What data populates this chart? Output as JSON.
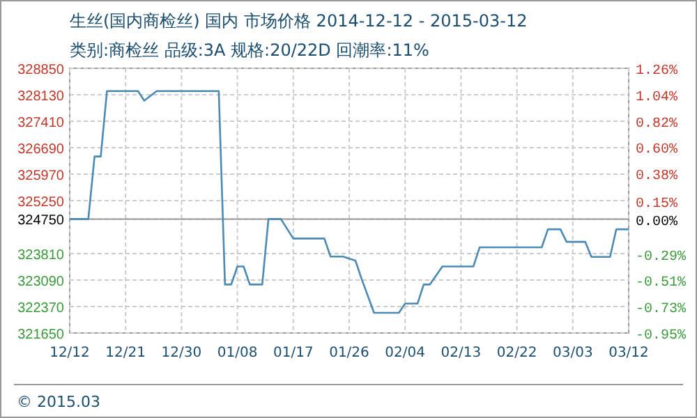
{
  "chart_data": {
    "type": "line",
    "title": "生丝(国内商检丝) 国内 市场价格 2014-12-12 - 2015-03-12",
    "subtitle": "类别:商检丝 品级:3A 规格:20/22D 回潮率:11%",
    "annotations": [
      "© 2015.03"
    ],
    "x": [
      "2014-12-12",
      "2014-12-15",
      "2014-12-16",
      "2014-12-17",
      "2014-12-18",
      "2014-12-23",
      "2014-12-24",
      "2014-12-26",
      "2015-01-05",
      "2015-01-06",
      "2015-01-07",
      "2015-01-08",
      "2015-01-09",
      "2015-01-10",
      "2015-01-12",
      "2015-01-13",
      "2015-01-15",
      "2015-01-17",
      "2015-01-22",
      "2015-01-23",
      "2015-01-25",
      "2015-01-27",
      "2015-01-28",
      "2015-01-30",
      "2015-02-03",
      "2015-02-04",
      "2015-02-06",
      "2015-02-07",
      "2015-02-08",
      "2015-02-10",
      "2015-02-15",
      "2015-02-16",
      "2015-02-26",
      "2015-02-27",
      "2015-03-01",
      "2015-03-02",
      "2015-03-05",
      "2015-03-06",
      "2015-03-09",
      "2015-03-10",
      "2015-03-12"
    ],
    "series": [
      {
        "color": "#4a8ab4",
        "values": [
          324750,
          324750,
          326450,
          326450,
          328230,
          328230,
          327970,
          328230,
          328230,
          322970,
          322970,
          323460,
          323460,
          322970,
          322970,
          324750,
          324750,
          324220,
          324220,
          323730,
          323730,
          323620,
          323120,
          322200,
          322200,
          322450,
          322450,
          322970,
          322970,
          323460,
          323460,
          323980,
          323980,
          324470,
          324470,
          324130,
          324130,
          323720,
          323720,
          324470,
          324470
        ]
      }
    ],
    "xlim": [
      "2014-12-12",
      "2015-03-12"
    ],
    "xticks": [
      {
        "value": "2014-12-12",
        "label": "12/12"
      },
      {
        "value": "2014-12-21",
        "label": "12/21"
      },
      {
        "value": "2014-12-30",
        "label": "12/30"
      },
      {
        "value": "2015-01-08",
        "label": "01/08"
      },
      {
        "value": "2015-01-17",
        "label": "01/17"
      },
      {
        "value": "2015-01-26",
        "label": "01/26"
      },
      {
        "value": "2015-02-04",
        "label": "02/04"
      },
      {
        "value": "2015-02-13",
        "label": "02/13"
      },
      {
        "value": "2015-02-22",
        "label": "02/22"
      },
      {
        "value": "2015-03-03",
        "label": "03/03"
      },
      {
        "value": "2015-03-12",
        "label": "03/12"
      }
    ],
    "ylim": [
      321650,
      328850
    ],
    "yticks": [
      321650,
      322370,
      323090,
      323810,
      324750,
      325250,
      325970,
      326690,
      327410,
      328130,
      328850
    ],
    "y2lim": [
      -0.95,
      1.26
    ],
    "y2ticks": [
      {
        "value": -0.95,
        "label": "-0.95%"
      },
      {
        "value": -0.73,
        "label": "-0.73%"
      },
      {
        "value": -0.51,
        "label": "-0.51%"
      },
      {
        "value": -0.29,
        "label": "-0.29%"
      },
      {
        "value": 0,
        "label": "0.00%"
      },
      {
        "value": 0.15,
        "label": "0.15%"
      },
      {
        "value": 0.38,
        "label": "0.38%"
      },
      {
        "value": 0.6,
        "label": "0.60%"
      },
      {
        "value": 0.82,
        "label": "0.82%"
      },
      {
        "value": 1.04,
        "label": "1.04%"
      },
      {
        "value": 1.26,
        "label": "1.26%"
      }
    ],
    "ref_lines": [
      {
        "axis": "y",
        "value": 324750,
        "color": "#999999"
      }
    ],
    "grid": true,
    "marker": "none",
    "line_style": "solid"
  }
}
